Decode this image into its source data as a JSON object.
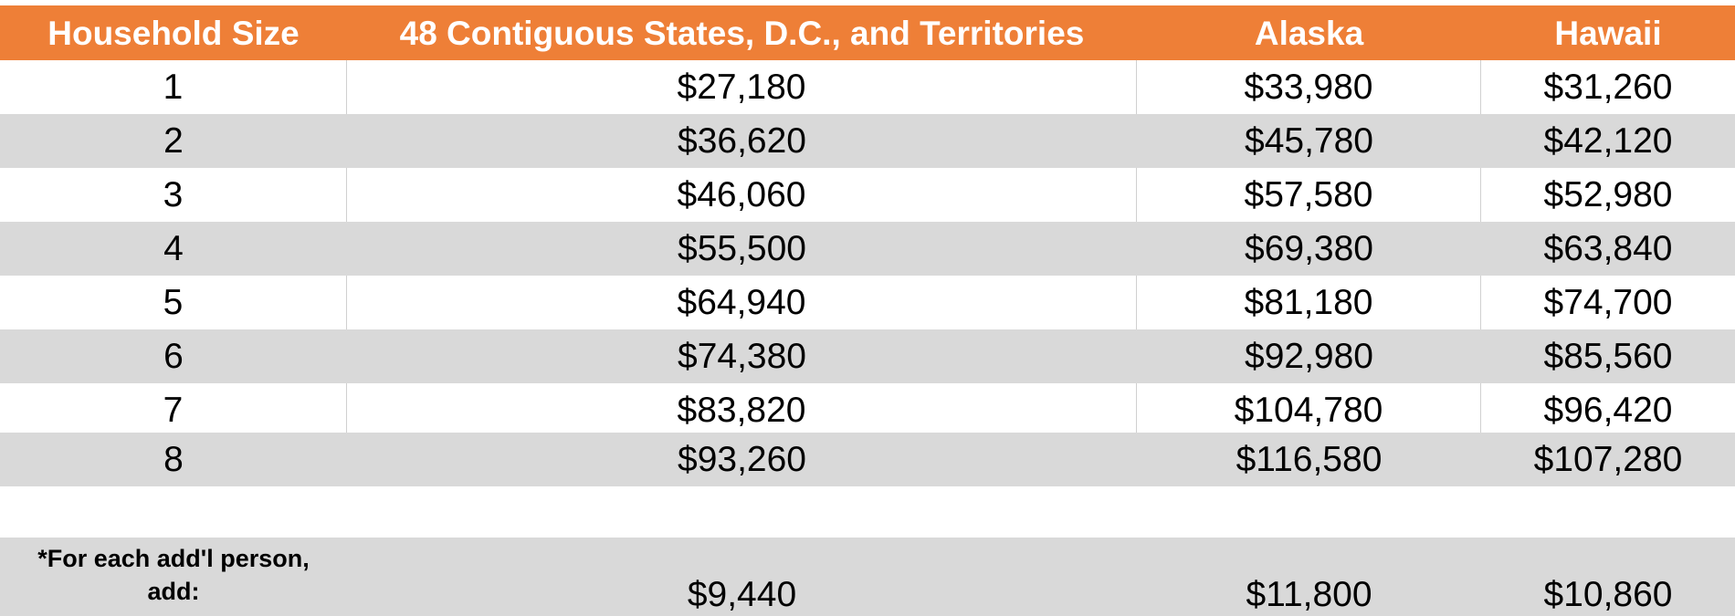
{
  "header": {
    "household_size": "Household Size",
    "contiguous": "48 Contiguous States, D.C., and Territories",
    "alaska": "Alaska",
    "hawaii": "Hawaii"
  },
  "rows": [
    {
      "size": "1",
      "contiguous": "$27,180",
      "alaska": "$33,980",
      "hawaii": "$31,260"
    },
    {
      "size": "2",
      "contiguous": "$36,620",
      "alaska": "$45,780",
      "hawaii": "$42,120"
    },
    {
      "size": "3",
      "contiguous": "$46,060",
      "alaska": "$57,580",
      "hawaii": "$52,980"
    },
    {
      "size": "4",
      "contiguous": "$55,500",
      "alaska": "$69,380",
      "hawaii": "$63,840"
    },
    {
      "size": "5",
      "contiguous": "$64,940",
      "alaska": "$81,180",
      "hawaii": "$74,700"
    },
    {
      "size": "6",
      "contiguous": "$74,380",
      "alaska": "$92,980",
      "hawaii": "$85,560"
    },
    {
      "size": "7",
      "contiguous": "$83,820",
      "alaska": "$104,780",
      "hawaii": "$96,420"
    },
    {
      "size": "8",
      "contiguous": "$93,260",
      "alaska": "$116,580",
      "hawaii": "$107,280"
    }
  ],
  "footer": {
    "note_line1": "*For each add'l person,",
    "note_line2": "add:",
    "contiguous": "$9,440",
    "alaska": "$11,800",
    "hawaii": "$10,860"
  },
  "colors": {
    "header_bg": "#ee7f37",
    "header_text": "#ffffff",
    "row_shade": "#d9d9d9"
  }
}
